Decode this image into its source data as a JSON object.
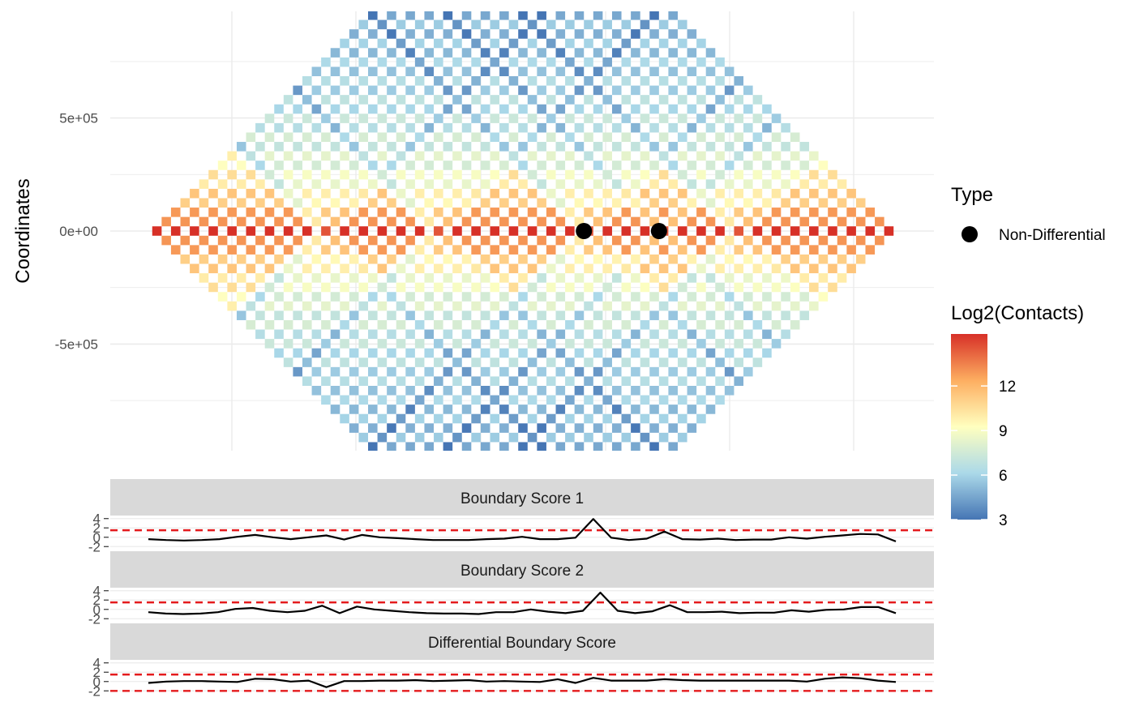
{
  "chart_data": [
    {
      "type": "heatmap",
      "ylabel": "Coordinates",
      "y_ticks": [
        "5e+05",
        "0e+00",
        "-5e+05"
      ],
      "y_tick_values": [
        500000,
        0,
        -500000
      ],
      "ylim": [
        -970000,
        970000
      ],
      "grid": true,
      "n_bins": 40,
      "fill_scale": {
        "title": "Log2(Contacts)",
        "min": 3,
        "max": 15.5,
        "breaks": [
          3,
          6,
          9,
          12
        ],
        "colors": [
          "#4575b4",
          "#abd9e9",
          "#ffffbf",
          "#fdae61",
          "#d73027"
        ]
      },
      "points": [
        {
          "bin": 23,
          "y": 0,
          "type": "Non-Differential"
        },
        {
          "bin": 27,
          "y": 0,
          "type": "Non-Differential"
        }
      ],
      "legend": {
        "title": "Type",
        "entries": [
          "Non-Differential"
        ],
        "placement": "right"
      }
    },
    {
      "type": "line",
      "title": "Boundary Score 1",
      "y_ticks": [
        "4",
        "2",
        "0",
        "-2"
      ],
      "ylim": [
        -2.3,
        4.3
      ],
      "threshold": [
        1.5
      ],
      "values": [
        -0.4,
        -0.6,
        -0.7,
        -0.6,
        -0.4,
        0.1,
        0.5,
        0.0,
        -0.4,
        0.0,
        0.4,
        -0.5,
        0.5,
        0.0,
        -0.2,
        -0.4,
        -0.6,
        -0.6,
        -0.6,
        -0.4,
        -0.3,
        0.1,
        -0.4,
        -0.4,
        -0.1,
        3.9,
        -0.1,
        -0.6,
        -0.3,
        1.2,
        -0.4,
        -0.5,
        -0.3,
        -0.6,
        -0.5,
        -0.5,
        0.0,
        -0.3,
        0.1,
        0.4,
        0.7,
        0.6,
        -0.9
      ]
    },
    {
      "type": "line",
      "title": "Boundary Score 2",
      "y_ticks": [
        "4",
        "2",
        "0",
        "-2"
      ],
      "ylim": [
        -2.3,
        4.3
      ],
      "threshold": [
        1.5
      ],
      "values": [
        -0.6,
        -0.9,
        -1.0,
        -0.9,
        -0.6,
        0.1,
        0.3,
        -0.3,
        -0.6,
        -0.3,
        0.8,
        -0.8,
        0.6,
        0.0,
        -0.3,
        -0.6,
        -0.8,
        -0.9,
        -0.9,
        -1.0,
        -0.6,
        -0.6,
        0.0,
        -0.5,
        -0.8,
        -0.3,
        3.6,
        -0.3,
        -0.8,
        -0.4,
        0.9,
        -0.6,
        -0.6,
        -0.5,
        -0.8,
        -0.7,
        -0.7,
        -0.2,
        -0.5,
        -0.1,
        0.0,
        0.5,
        0.5,
        -0.8
      ]
    },
    {
      "type": "line",
      "title": "Differential Boundary Score",
      "y_ticks": [
        "4",
        "2",
        "0",
        "-2"
      ],
      "ylim": [
        -2.3,
        4.3
      ],
      "threshold": [
        1.5,
        -2.0
      ],
      "values": [
        -0.3,
        0.0,
        0.1,
        0.1,
        0.0,
        -0.1,
        0.6,
        0.5,
        0.0,
        0.2,
        -1.2,
        0.1,
        0.1,
        0.2,
        0.2,
        0.3,
        0.1,
        0.2,
        0.3,
        0.0,
        0.1,
        0.0,
        -0.1,
        0.5,
        -0.3,
        0.8,
        0.2,
        0.2,
        0.2,
        0.5,
        0.3,
        0.2,
        0.2,
        0.2,
        0.2,
        0.2,
        0.2,
        0.0,
        0.6,
        0.9,
        0.7,
        0.2,
        -0.1
      ]
    }
  ]
}
